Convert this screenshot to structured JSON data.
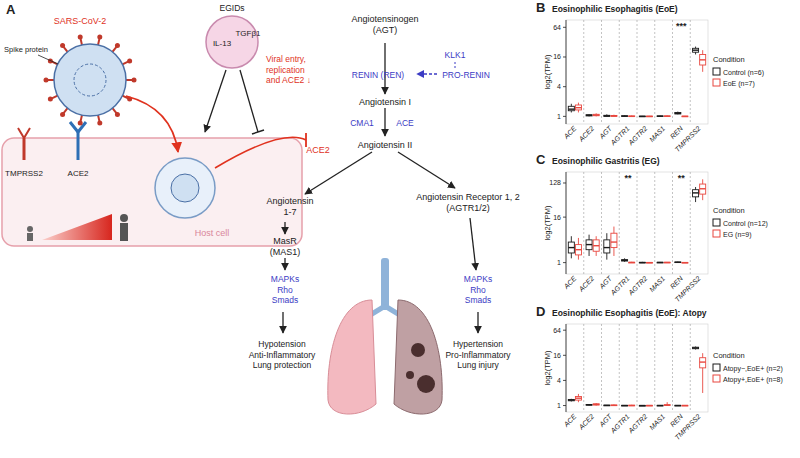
{
  "diagram": {
    "panel": "A",
    "labels": [
      {
        "lines": [
          "SARS-CoV-2"
        ],
        "color": "#e0321e"
      },
      {
        "lines": [
          "Spike protein"
        ],
        "color": "#222222"
      },
      {
        "lines": [
          "EGIDs"
        ],
        "color": "#222222"
      },
      {
        "lines": [
          "IL-13"
        ],
        "color": "#222222"
      },
      {
        "lines": [
          "TGFβ1"
        ],
        "color": "#222222"
      },
      {
        "lines": [
          "Viral entry,",
          "replication",
          "and ACE2 ↓"
        ],
        "color": "#e0321e"
      },
      {
        "lines": [
          "TMPRSS2"
        ],
        "color": "#222222"
      },
      {
        "lines": [
          "ACE2"
        ],
        "color": "#222222"
      },
      {
        "lines": [
          "Host cell"
        ],
        "color": "#d9869a"
      },
      {
        "lines": [
          "Angiotensinogen",
          "(AGT)"
        ],
        "color": "#222222"
      },
      {
        "lines": [
          "KLK1"
        ],
        "color": "#3b3bc4"
      },
      {
        "lines": [
          "RENIN (REN)"
        ],
        "color": "#3b3bc4"
      },
      {
        "lines": [
          "PRO-RENIN"
        ],
        "color": "#3b3bc4"
      },
      {
        "lines": [
          "Angiotensin I"
        ],
        "color": "#222222"
      },
      {
        "lines": [
          "CMA1"
        ],
        "color": "#3b3bc4"
      },
      {
        "lines": [
          "ACE"
        ],
        "color": "#3b3bc4"
      },
      {
        "lines": [
          "Angiotensin II"
        ],
        "color": "#222222"
      },
      {
        "lines": [
          "ACE2"
        ],
        "color": "#e0321e"
      },
      {
        "lines": [
          "Angiotensin",
          "1-7"
        ],
        "color": "#222222"
      },
      {
        "lines": [
          "MasR",
          "(MAS1)"
        ],
        "color": "#222222"
      },
      {
        "lines": [
          "MAPKs",
          "Rho",
          "Smads"
        ],
        "color": "#3b3bc4"
      },
      {
        "lines": [
          "Hypotension",
          "Anti-Inflammatory",
          "Lung protection"
        ],
        "color": "#222222"
      },
      {
        "lines": [
          "Angiotensin Receptor 1, 2",
          "(AGTR1/2)"
        ],
        "color": "#222222"
      },
      {
        "lines": [
          "MAPKs",
          "Rho",
          "Smads"
        ],
        "color": "#3b3bc4"
      },
      {
        "lines": [
          "Hypertension",
          "Pro-Inflammatory",
          "Lung injury"
        ],
        "color": "#222222"
      }
    ]
  },
  "chart_data": [
    {
      "panel": "B",
      "type": "box",
      "title": "Eosinophilic Esophagitis (EoE)",
      "ylabel": "log2(TPM)",
      "log": "y",
      "grid": true,
      "legend": "right",
      "legend_title": "Condition",
      "categories": [
        "ACE",
        "ACE2",
        "AGT",
        "AGTR1",
        "AGTR2",
        "MAS1",
        "REN",
        "TMPRSS2"
      ],
      "ylim": [
        0.7,
        90
      ],
      "yticks": [
        1,
        4,
        16,
        64
      ],
      "annotations": [
        {
          "category": "REN",
          "text": "***"
        }
      ],
      "series": [
        {
          "name": "Control (n=6)",
          "color": "#1a1a1a",
          "min": [
            1.2,
            1,
            1,
            1,
            1,
            1,
            1.1,
            18
          ],
          "q1": [
            1.3,
            1.02,
            1,
            1,
            1,
            1,
            1.12,
            20
          ],
          "median": [
            1.4,
            1.05,
            1.02,
            1.01,
            1,
            1.01,
            1.15,
            22
          ],
          "q3": [
            1.6,
            1.08,
            1.05,
            1.03,
            1.01,
            1.02,
            1.2,
            24
          ],
          "max": [
            1.8,
            1.1,
            1.1,
            1.05,
            1.02,
            1.03,
            1.25,
            26
          ]
        },
        {
          "name": "EoE (n=7)",
          "color": "#e8473f",
          "min": [
            1.2,
            1,
            1,
            1,
            1,
            1,
            1,
            8
          ],
          "q1": [
            1.35,
            1.03,
            1,
            1,
            1,
            1,
            1,
            11
          ],
          "median": [
            1.5,
            1.06,
            1.02,
            1,
            1,
            1.01,
            1,
            14
          ],
          "q3": [
            1.7,
            1.1,
            1.04,
            1.02,
            1.01,
            1.02,
            1.01,
            18
          ],
          "max": [
            1.9,
            1.15,
            1.08,
            1.04,
            1.02,
            1.04,
            1.02,
            22
          ]
        }
      ]
    },
    {
      "panel": "C",
      "type": "box",
      "title": "Eosinophilic Gastritis (EG)",
      "ylabel": "log2(TPM)",
      "log": "y",
      "grid": true,
      "legend": "right",
      "legend_title": "Condition",
      "categories": [
        "ACE",
        "ACE2",
        "AGT",
        "AGTR1",
        "AGTR2",
        "MAS1",
        "REN",
        "TMPRSS2"
      ],
      "ylim": [
        0.5,
        250
      ],
      "yticks": [
        1,
        16,
        128
      ],
      "annotations": [
        {
          "category": "AGTR1",
          "text": "**"
        },
        {
          "category": "REN",
          "text": "**"
        }
      ],
      "series": [
        {
          "name": "Control (n=12)",
          "color": "#1a1a1a",
          "min": [
            1.3,
            1.5,
            1.2,
            1.05,
            1,
            1,
            1,
            40
          ],
          "q1": [
            1.8,
            2.2,
            1.8,
            1.1,
            1,
            1,
            1.01,
            55
          ],
          "median": [
            2.5,
            3,
            2.5,
            1.15,
            1,
            1.01,
            1.02,
            70
          ],
          "q3": [
            3.5,
            4,
            4,
            1.2,
            1.02,
            1.02,
            1.04,
            85
          ],
          "max": [
            5,
            5.5,
            6,
            1.3,
            1.05,
            1.04,
            1.06,
            100
          ]
        },
        {
          "name": "EG (n=9)",
          "color": "#e8473f",
          "min": [
            1.2,
            1.5,
            1.5,
            1,
            1,
            1,
            1,
            45
          ],
          "q1": [
            1.6,
            2,
            2.5,
            1,
            1,
            1,
            1,
            65
          ],
          "median": [
            2.2,
            2.8,
            3.5,
            1.01,
            1,
            1.01,
            1,
            90
          ],
          "q3": [
            3,
            4,
            6,
            1.02,
            1.01,
            1.02,
            1.01,
            120
          ],
          "max": [
            4.5,
            5,
            9,
            1.05,
            1.03,
            1.03,
            1.02,
            160
          ]
        }
      ]
    },
    {
      "panel": "D",
      "type": "box",
      "title": "Eosinophilic Esophagitis (EoE): Atopy",
      "ylabel": "log2(TPM)",
      "log": "y",
      "grid": true,
      "legend": "right",
      "legend_title": "Condition",
      "categories": [
        "ACE",
        "ACE2",
        "AGT",
        "AGTR1",
        "AGTR2",
        "MAS1",
        "REN",
        "TMPRSS2"
      ],
      "ylim": [
        0.7,
        90
      ],
      "yticks": [
        1,
        4,
        16,
        64
      ],
      "annotations": [],
      "series": [
        {
          "name": "Atopy−,EoE+ (n=2)",
          "color": "#1a1a1a",
          "min": [
            1.25,
            1,
            1,
            1,
            1,
            1,
            1,
            22
          ],
          "q1": [
            1.3,
            1.02,
            1,
            1,
            1,
            1,
            1,
            23
          ],
          "median": [
            1.35,
            1.04,
            1.01,
            1,
            1,
            1,
            1,
            24
          ],
          "q3": [
            1.4,
            1.06,
            1.02,
            1.01,
            1,
            1.01,
            1.01,
            25
          ],
          "max": [
            1.45,
            1.08,
            1.03,
            1.02,
            1.01,
            1.02,
            1.02,
            26
          ]
        },
        {
          "name": "Atopy+,EoE+ (n=8)",
          "color": "#e8473f",
          "min": [
            1.2,
            1,
            1,
            1,
            1,
            1,
            1,
            2
          ],
          "q1": [
            1.35,
            1.03,
            1,
            1,
            1,
            1.01,
            1,
            8
          ],
          "median": [
            1.5,
            1.06,
            1.01,
            1,
            1,
            1.02,
            1,
            11
          ],
          "q3": [
            1.65,
            1.1,
            1.03,
            1.02,
            1.01,
            1.05,
            1.01,
            14
          ],
          "max": [
            1.9,
            1.15,
            1.06,
            1.04,
            1.02,
            1.2,
            1.02,
            18
          ]
        }
      ]
    }
  ]
}
